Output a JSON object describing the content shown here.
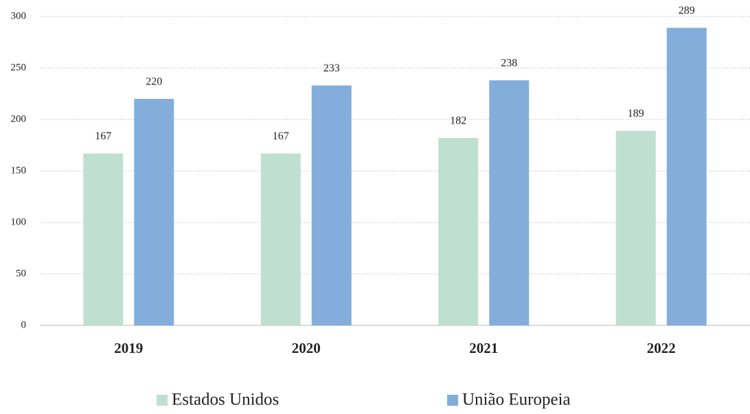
{
  "chart_data": {
    "type": "bar",
    "categories": [
      "2019",
      "2020",
      "2021",
      "2022"
    ],
    "series": [
      {
        "name": "Estados Unidos",
        "color": "#bfe0d0",
        "values": [
          167,
          167,
          182,
          189
        ]
      },
      {
        "name": "União Europeia",
        "color": "#83aedb",
        "values": [
          220,
          233,
          238,
          289
        ]
      }
    ],
    "ylim": [
      0,
      300
    ],
    "yticks": [
      0,
      50,
      100,
      150,
      200,
      250,
      300
    ],
    "grid": true,
    "legend": "bottom"
  }
}
